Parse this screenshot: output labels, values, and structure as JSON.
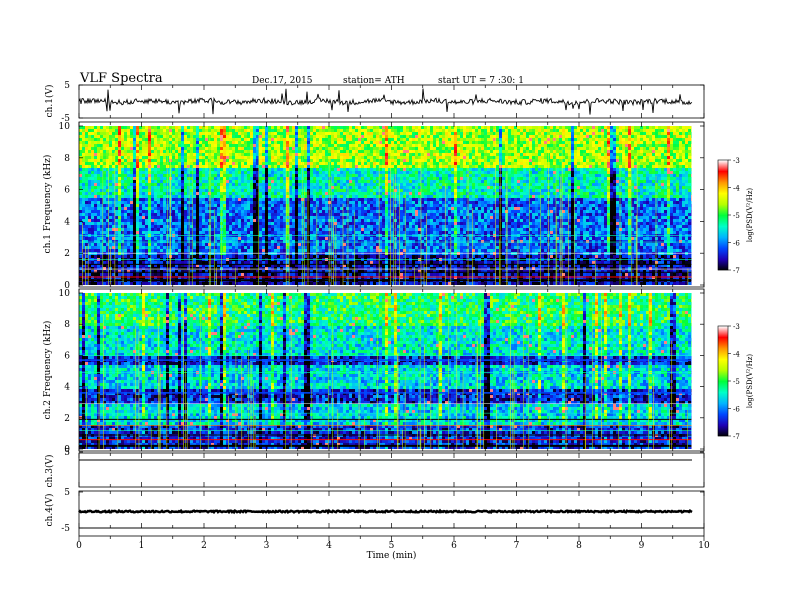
{
  "header": {
    "title": "VLF Spectra",
    "date": "Dec.17, 2015",
    "station": "station= ATH",
    "start_ut": "start UT =  7 :30: 1"
  },
  "chart_data": [
    {
      "type": "line",
      "panel": "ch1-waveform",
      "ylabel": "ch.1(V)",
      "ylim": [
        -5,
        5
      ],
      "yticks": [
        "5",
        "-5"
      ],
      "xlim": [
        0,
        9.8
      ],
      "baseline": 0,
      "description_values": {
        "typical_amplitude_range": [
          -1,
          1
        ],
        "spike_amplitude_max": 4
      }
    },
    {
      "type": "heatmap",
      "panel": "ch1-spectrogram",
      "ylabel": "ch.1  Frequency  (kHz)",
      "ylim": [
        0,
        10
      ],
      "yticks": [
        "0",
        "2",
        "4",
        "6",
        "8",
        "10"
      ],
      "xlim": [
        0,
        9.8
      ],
      "bands": [
        {
          "from": 0,
          "to": 2,
          "level": -6.6
        },
        {
          "from": 2,
          "to": 5.5,
          "level": -6.1
        },
        {
          "from": 5.5,
          "to": 7.5,
          "level": -5.4
        },
        {
          "from": 7.5,
          "to": 10,
          "level": -4.6
        }
      ],
      "colorbar": {
        "label": "log(PSD(V²/Hz)",
        "range": [
          -7,
          -3
        ],
        "ticks": [
          "-3",
          "-4",
          "-5",
          "-6",
          "-7"
        ]
      }
    },
    {
      "type": "heatmap",
      "panel": "ch2-spectrogram",
      "ylabel": "ch.2  Frequency  (kHz)",
      "ylim": [
        0,
        10
      ],
      "yticks": [
        "0",
        "2",
        "4",
        "6",
        "8",
        "10"
      ],
      "xlim": [
        0,
        9.8
      ],
      "bands": [
        {
          "from": 0,
          "to": 1.6,
          "level": -6.4
        },
        {
          "from": 1.6,
          "to": 3.0,
          "level": -5.6
        },
        {
          "from": 3.0,
          "to": 4.0,
          "level": -6.4
        },
        {
          "from": 4.0,
          "to": 5.5,
          "level": -5.6
        },
        {
          "from": 5.5,
          "to": 6.0,
          "level": -6.4
        },
        {
          "from": 6.0,
          "to": 8.0,
          "level": -5.5
        },
        {
          "from": 8.0,
          "to": 10,
          "level": -5.1
        }
      ],
      "colorbar": {
        "label": "log(PSD(V²/Hz)",
        "range": [
          -7,
          -3
        ],
        "ticks": [
          "-3",
          "-4",
          "-5",
          "-6",
          "-7"
        ]
      }
    },
    {
      "type": "line",
      "panel": "ch3-waveform",
      "ylabel": "ch.3(V)",
      "ylim": [
        -5,
        5
      ],
      "yticks": [
        "5"
      ],
      "xlim": [
        0,
        9.8
      ],
      "baseline": 0
    },
    {
      "type": "line",
      "panel": "ch4-waveform",
      "ylabel": "ch.4(V)",
      "ylim": [
        -5,
        5
      ],
      "yticks": [
        "5",
        "-5"
      ],
      "xlim": [
        0,
        9.8
      ],
      "baseline": 0
    }
  ],
  "xaxis": {
    "label": "Time  (min)",
    "range": [
      0,
      10
    ],
    "ticks": [
      "0",
      "1",
      "2",
      "3",
      "4",
      "5",
      "6",
      "7",
      "8",
      "9",
      "10"
    ]
  },
  "colors": {
    "colormap": [
      "#000000",
      "#1e00b4",
      "#0046ff",
      "#00b4ff",
      "#00ffc8",
      "#00ff3c",
      "#b4ff00",
      "#ffff00",
      "#ff9600",
      "#ff0000",
      "#ffffff"
    ]
  }
}
